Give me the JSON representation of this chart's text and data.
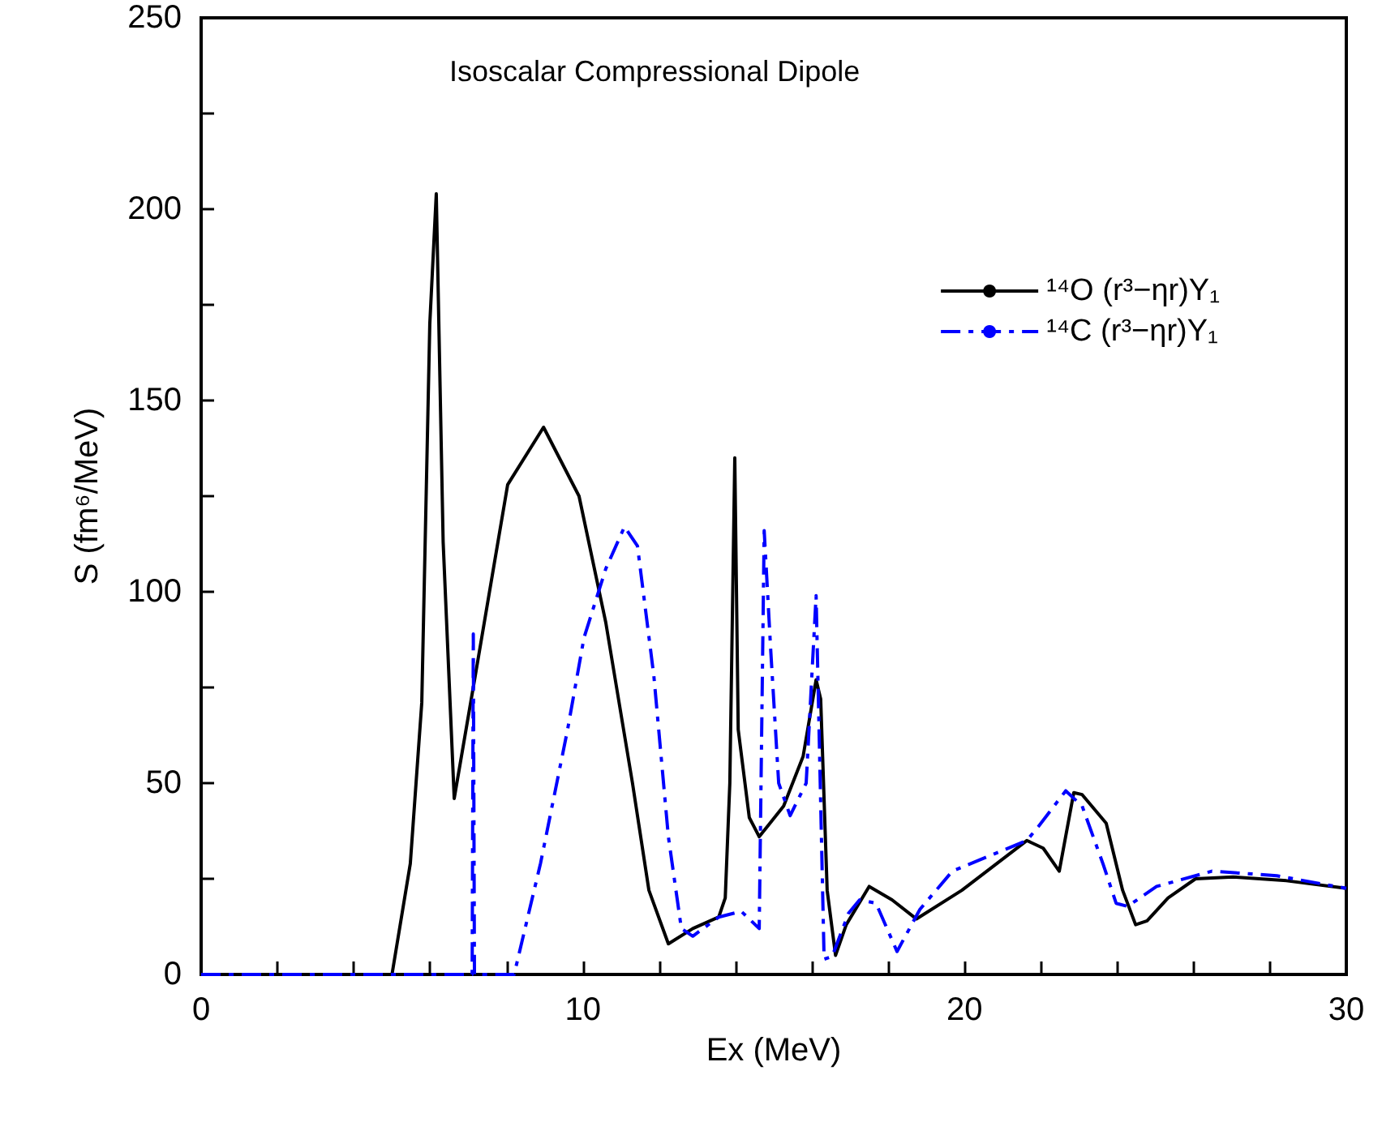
{
  "chart_data": {
    "type": "line",
    "title": "Isoscalar Compressional Dipole",
    "xlabel": "Ex (MeV)",
    "ylabel": "S (fm⁶/MeV)",
    "xlim": [
      0,
      30
    ],
    "ylim": [
      0,
      250
    ],
    "xticks": [
      0,
      {
        "value": 2,
        "label": null
      },
      {
        "value": 4,
        "label": null
      },
      {
        "value": 6,
        "label": null
      },
      {
        "value": 8,
        "label": null
      },
      10,
      {
        "value": 12,
        "label": null
      },
      {
        "value": 14,
        "label": null
      },
      {
        "value": 16,
        "label": null
      },
      {
        "value": 18,
        "label": null
      },
      20,
      {
        "value": 22,
        "label": null
      },
      {
        "value": 24,
        "label": null
      },
      {
        "value": 26,
        "label": null
      },
      {
        "value": 28,
        "label": null
      },
      30
    ],
    "yticks": [
      0,
      {
        "value": 25,
        "label": null
      },
      50,
      {
        "value": 75,
        "label": null
      },
      100,
      {
        "value": 125,
        "label": null
      },
      150,
      {
        "value": 175,
        "label": null
      },
      200,
      {
        "value": 225,
        "label": null
      },
      250
    ],
    "grid": false,
    "legend": "top right",
    "marker": "none",
    "series": [
      {
        "name": "¹⁴O (r³−ηr)Y₁",
        "color": "#000000",
        "line_style": "solid",
        "x": [
          0,
          5.0,
          5.48,
          5.78,
          5.99,
          6.16,
          6.34,
          6.63,
          7.18,
          8.03,
          8.97,
          9.9,
          10.6,
          11.3,
          11.73,
          12.24,
          12.88,
          13.56,
          13.73,
          13.85,
          13.98,
          14.07,
          14.36,
          14.62,
          15.26,
          15.77,
          16.11,
          16.23,
          16.4,
          16.62,
          16.9,
          17.5,
          18.1,
          18.74,
          19.93,
          21.63,
          22.06,
          22.48,
          22.86,
          23.08,
          23.71,
          24.14,
          24.48,
          24.78,
          25.33,
          26.05,
          27.03,
          28.43,
          30
        ],
        "values": [
          0,
          0,
          29,
          71,
          170,
          204,
          113,
          46,
          78,
          128,
          143,
          125,
          92,
          50,
          22,
          8,
          12,
          15,
          20,
          50,
          135,
          64,
          41,
          36,
          44,
          57,
          77,
          72,
          22,
          5,
          13,
          23,
          19.5,
          14.5,
          22,
          35,
          33,
          27,
          47.5,
          47,
          39.5,
          22,
          13,
          14,
          20,
          25,
          25.5,
          24.5,
          22.5
        ]
      },
      {
        "name": "¹⁴C (r³−ηr)Y₁",
        "color": "#0000ff",
        "line_style": "dashed",
        "x": [
          0,
          7.1,
          7.13,
          7.16,
          8.2,
          8.89,
          9.6,
          10.03,
          10.6,
          11.09,
          11.43,
          11.86,
          12.24,
          12.58,
          12.88,
          13.56,
          14.15,
          14.62,
          14.75,
          14.92,
          15.13,
          15.43,
          15.85,
          16.11,
          16.32,
          16.53,
          16.96,
          17.25,
          17.68,
          18.23,
          18.83,
          19.68,
          21.63,
          21.93,
          22.65,
          23.08,
          23.63,
          23.97,
          24.27,
          25.03,
          26.48,
          28.18,
          30
        ],
        "values": [
          0,
          0,
          89,
          0,
          0,
          29,
          64,
          88,
          106,
          117,
          112,
          78,
          36,
          12,
          10,
          15,
          16.5,
          12,
          116,
          85,
          50,
          41.5,
          50,
          99,
          4,
          4.7,
          16,
          19.5,
          18.6,
          6,
          17,
          27,
          35,
          38.6,
          48,
          44,
          28.8,
          18.6,
          17.8,
          23,
          27,
          25.8,
          22.5
        ]
      }
    ]
  }
}
